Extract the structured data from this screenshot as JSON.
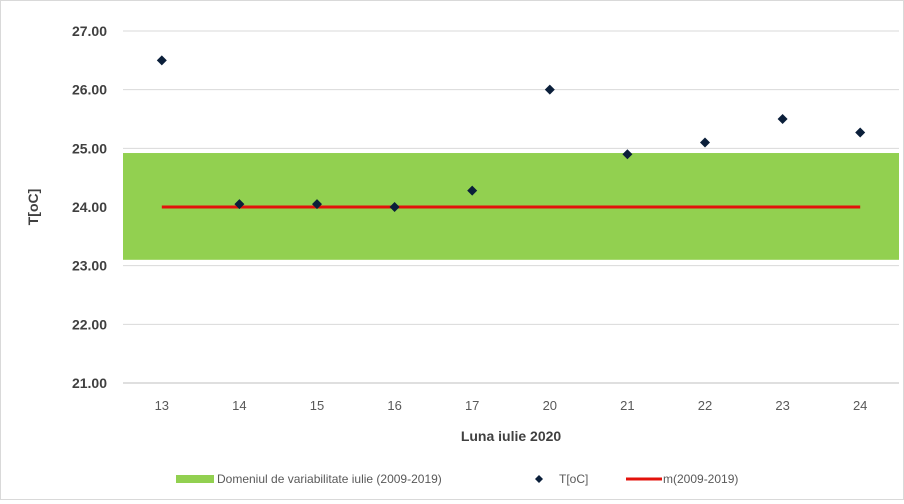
{
  "chart_data": {
    "type": "scatter",
    "title": "",
    "xlabel": "Luna iulie 2020",
    "ylabel": "T[oC]",
    "categories": [
      "13",
      "14",
      "15",
      "16",
      "17",
      "20",
      "21",
      "22",
      "23",
      "24"
    ],
    "ylim": [
      21.0,
      27.0
    ],
    "yticks": [
      "21.00",
      "22.00",
      "23.00",
      "24.00",
      "25.00",
      "26.00",
      "27.00"
    ],
    "grid": true,
    "legend_position": "bottom",
    "series": [
      {
        "name": "T[oC]",
        "kind": "scatter",
        "marker": "diamond",
        "color": "#0b1f3a",
        "values": [
          26.5,
          24.05,
          24.05,
          24.0,
          24.28,
          26.0,
          24.9,
          25.1,
          25.5,
          25.27
        ]
      },
      {
        "name": "m(2009-2019)",
        "kind": "line",
        "color": "#e3120b",
        "values": [
          24.0,
          24.0,
          24.0,
          24.0,
          24.0,
          24.0,
          24.0,
          24.0,
          24.0,
          24.0
        ]
      },
      {
        "name": "Domeniul de variabilitate iulie (2009-2019)",
        "kind": "band",
        "color": "#92d050",
        "range": [
          23.1,
          24.92
        ]
      }
    ]
  }
}
